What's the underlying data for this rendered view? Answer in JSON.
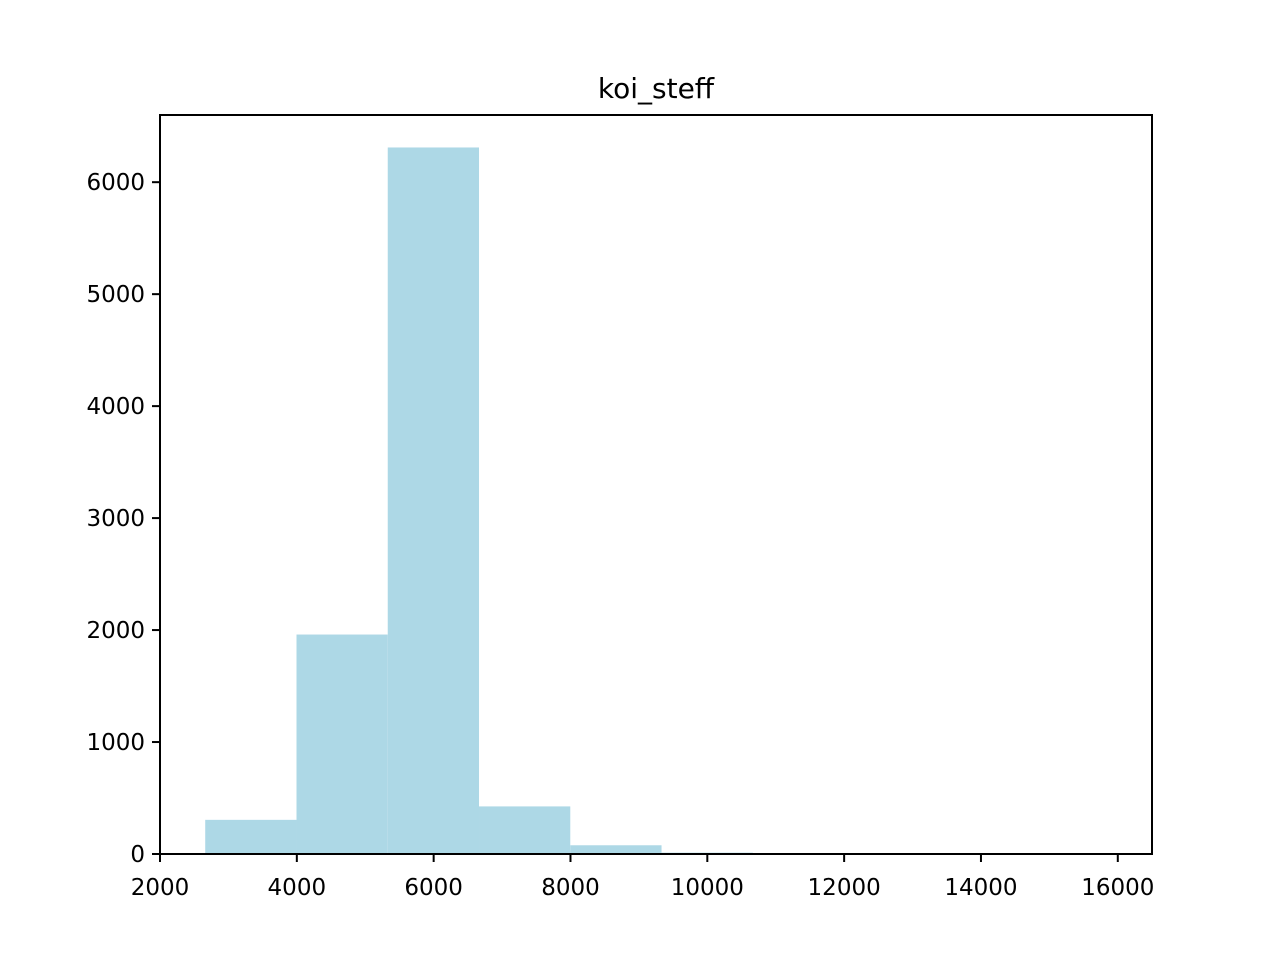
{
  "chart_data": {
    "type": "bar",
    "subtype": "histogram",
    "title": "koi_steff",
    "xlabel": "",
    "ylabel": "",
    "bin_edges": [
      2661,
      3995,
      5329,
      6663,
      7997,
      9331,
      10665,
      11999,
      13333,
      14667,
      16001
    ],
    "counts": [
      305,
      1960,
      6310,
      425,
      78,
      12,
      0,
      0,
      0,
      0
    ],
    "xlim": [
      2000,
      16500
    ],
    "ylim": [
      0,
      6600
    ],
    "xticks": [
      2000,
      4000,
      6000,
      8000,
      10000,
      12000,
      14000,
      16000
    ],
    "yticks": [
      0,
      1000,
      2000,
      3000,
      4000,
      5000,
      6000
    ],
    "xtick_labels": [
      "2000",
      "4000",
      "6000",
      "8000",
      "10000",
      "12000",
      "14000",
      "16000"
    ],
    "ytick_labels": [
      "0",
      "1000",
      "2000",
      "3000",
      "4000",
      "5000",
      "6000"
    ],
    "bar_color": "#add8e6",
    "grid": false,
    "legend": false
  }
}
